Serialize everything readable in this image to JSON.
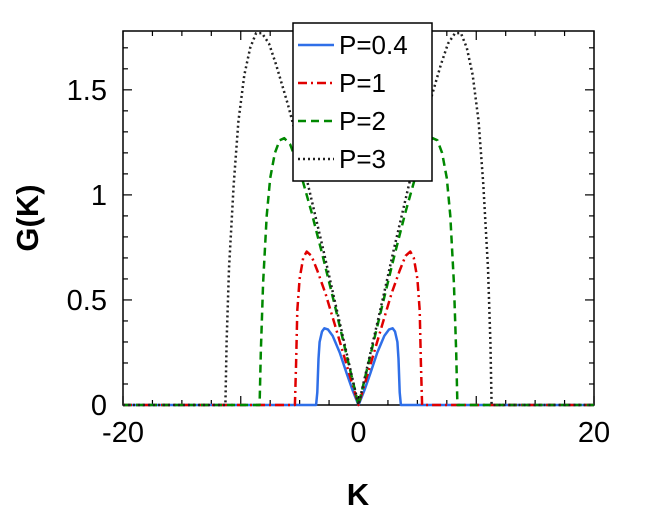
{
  "chart_data": {
    "type": "line",
    "xlabel": "K",
    "ylabel": "G(K)",
    "xlim": [
      -20,
      20
    ],
    "ylim": [
      0,
      1.78
    ],
    "x_ticks": [
      -20,
      0,
      20
    ],
    "x_tick_labels": [
      "-20",
      "0",
      "20"
    ],
    "y_ticks": [
      0,
      0.5,
      1,
      1.5
    ],
    "y_tick_labels": [
      "0",
      "0.5",
      "1",
      "1.5"
    ],
    "grid": false,
    "legend_position": "top-center",
    "series": [
      {
        "name": "P=0.4",
        "color": "#2f6fe8",
        "dash": "solid",
        "points": [
          [
            -20,
            0
          ],
          [
            -3.6,
            0
          ],
          [
            -3.5,
            0.06
          ],
          [
            -3.4,
            0.22
          ],
          [
            -3.3,
            0.3
          ],
          [
            -3.1,
            0.35
          ],
          [
            -2.9,
            0.365
          ],
          [
            -2.6,
            0.36
          ],
          [
            -2.2,
            0.33
          ],
          [
            -1.6,
            0.25
          ],
          [
            -1,
            0.15
          ],
          [
            -0.5,
            0.07
          ],
          [
            0,
            0
          ],
          [
            0.5,
            0.07
          ],
          [
            1,
            0.15
          ],
          [
            1.6,
            0.25
          ],
          [
            2.2,
            0.33
          ],
          [
            2.6,
            0.36
          ],
          [
            2.9,
            0.365
          ],
          [
            3.1,
            0.35
          ],
          [
            3.3,
            0.3
          ],
          [
            3.4,
            0.22
          ],
          [
            3.5,
            0.06
          ],
          [
            3.6,
            0
          ],
          [
            20,
            0
          ]
        ]
      },
      {
        "name": "P=1",
        "color": "#e00000",
        "dash": "dashdot",
        "points": [
          [
            -20,
            0
          ],
          [
            -5.4,
            0
          ],
          [
            -5.3,
            0.2
          ],
          [
            -5.2,
            0.45
          ],
          [
            -5,
            0.6
          ],
          [
            -4.7,
            0.7
          ],
          [
            -4.4,
            0.73
          ],
          [
            -4,
            0.71
          ],
          [
            -3.5,
            0.64
          ],
          [
            -2.8,
            0.53
          ],
          [
            -2,
            0.38
          ],
          [
            -1,
            0.19
          ],
          [
            0,
            0
          ],
          [
            1,
            0.19
          ],
          [
            2,
            0.38
          ],
          [
            2.8,
            0.53
          ],
          [
            3.5,
            0.64
          ],
          [
            4,
            0.71
          ],
          [
            4.4,
            0.73
          ],
          [
            4.7,
            0.7
          ],
          [
            5,
            0.6
          ],
          [
            5.2,
            0.45
          ],
          [
            5.3,
            0.2
          ],
          [
            5.4,
            0
          ],
          [
            20,
            0
          ]
        ]
      },
      {
        "name": "P=2",
        "color": "#008800",
        "dash": "dashed",
        "points": [
          [
            -20,
            0
          ],
          [
            -8.4,
            0
          ],
          [
            -8.3,
            0.25
          ],
          [
            -8.1,
            0.58
          ],
          [
            -7.8,
            0.9
          ],
          [
            -7.5,
            1.08
          ],
          [
            -7.1,
            1.2
          ],
          [
            -6.7,
            1.26
          ],
          [
            -6.3,
            1.27
          ],
          [
            -5.8,
            1.24
          ],
          [
            -5,
            1.12
          ],
          [
            -4,
            0.92
          ],
          [
            -3,
            0.7
          ],
          [
            -2,
            0.47
          ],
          [
            -1,
            0.235
          ],
          [
            0,
            0
          ],
          [
            1,
            0.235
          ],
          [
            2,
            0.47
          ],
          [
            3,
            0.7
          ],
          [
            4,
            0.92
          ],
          [
            5,
            1.12
          ],
          [
            5.8,
            1.24
          ],
          [
            6.3,
            1.27
          ],
          [
            6.7,
            1.26
          ],
          [
            7.1,
            1.2
          ],
          [
            7.5,
            1.08
          ],
          [
            7.8,
            0.9
          ],
          [
            8.1,
            0.58
          ],
          [
            8.3,
            0.25
          ],
          [
            8.4,
            0
          ],
          [
            20,
            0
          ]
        ]
      },
      {
        "name": "P=3",
        "color": "#222222",
        "dash": "dotted",
        "points": [
          [
            -20,
            0
          ],
          [
            -11.3,
            0
          ],
          [
            -11.2,
            0.3
          ],
          [
            -11,
            0.65
          ],
          [
            -10.6,
            1.05
          ],
          [
            -10.2,
            1.35
          ],
          [
            -9.7,
            1.57
          ],
          [
            -9.2,
            1.7
          ],
          [
            -8.7,
            1.77
          ],
          [
            -8.2,
            1.77
          ],
          [
            -7.6,
            1.72
          ],
          [
            -7,
            1.62
          ],
          [
            -6,
            1.43
          ],
          [
            -5,
            1.22
          ],
          [
            -4,
            0.98
          ],
          [
            -3,
            0.74
          ],
          [
            -2,
            0.49
          ],
          [
            -1,
            0.245
          ],
          [
            0,
            0
          ],
          [
            1,
            0.245
          ],
          [
            2,
            0.49
          ],
          [
            3,
            0.74
          ],
          [
            4,
            0.98
          ],
          [
            5,
            1.22
          ],
          [
            6,
            1.43
          ],
          [
            7,
            1.62
          ],
          [
            7.6,
            1.72
          ],
          [
            8.2,
            1.77
          ],
          [
            8.7,
            1.77
          ],
          [
            9.2,
            1.7
          ],
          [
            9.7,
            1.57
          ],
          [
            10.2,
            1.35
          ],
          [
            10.6,
            1.05
          ],
          [
            11,
            0.65
          ],
          [
            11.2,
            0.3
          ],
          [
            11.3,
            0
          ],
          [
            20,
            0
          ]
        ]
      }
    ]
  }
}
